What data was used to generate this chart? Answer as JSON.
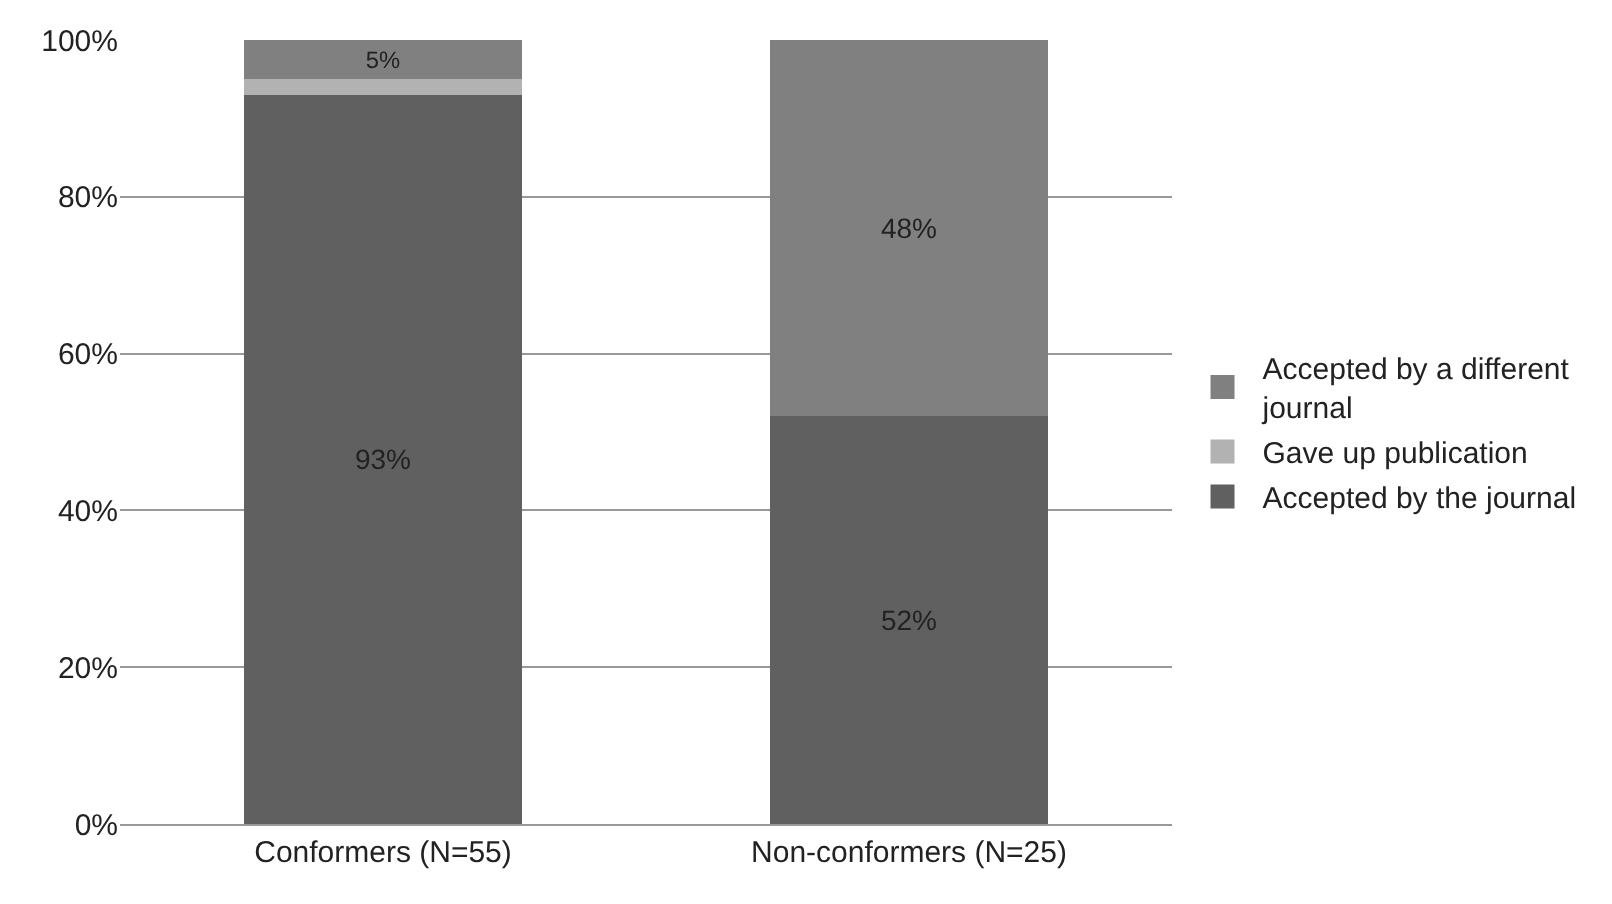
{
  "chart_data": {
    "type": "bar",
    "stacked": true,
    "categories": [
      "Conformers (N=55)",
      "Non-conformers (N=25)"
    ],
    "series": [
      {
        "name": "Accepted by the journal",
        "color": "#606060",
        "values": [
          93,
          52
        ],
        "value_labels": [
          "93%",
          "52%"
        ]
      },
      {
        "name": "Gave up publication",
        "color": "#b2b2b2",
        "values": [
          2,
          0
        ],
        "value_labels": [
          null,
          null
        ]
      },
      {
        "name": "Accepted by a different journal",
        "color": "#808080",
        "values": [
          5,
          48
        ],
        "value_labels": [
          "5%",
          "48%"
        ]
      }
    ],
    "ylim": [
      0,
      100
    ],
    "yticks": [
      {
        "value": 0,
        "label": "0%"
      },
      {
        "value": 20,
        "label": "20%"
      },
      {
        "value": 40,
        "label": "40%"
      },
      {
        "value": 60,
        "label": "60%"
      },
      {
        "value": 80,
        "label": "80%"
      },
      {
        "value": 100,
        "label": "100%"
      }
    ],
    "grid": "y",
    "legend": "right"
  }
}
